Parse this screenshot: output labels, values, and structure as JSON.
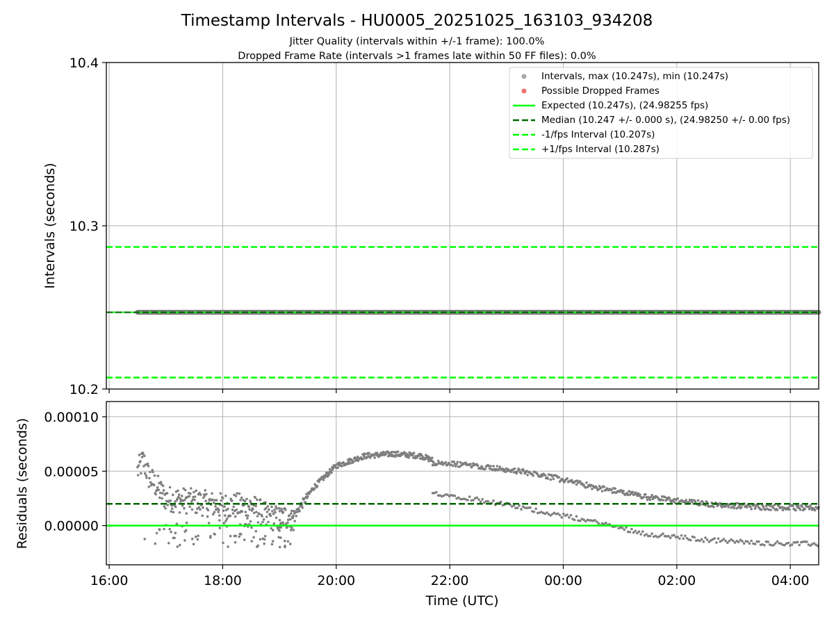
{
  "figure": {
    "title": "Timestamp Intervals - HU0005_20251025_163103_934208",
    "subtitle_1": "Jitter Quality (intervals within +/-1 frame): 100.0%",
    "subtitle_2": "Dropped Frame Rate (intervals >1 frames late within 50 FF files): 0.0%"
  },
  "colors": {
    "points": "#7f7f7f",
    "dropped": "#ff0000",
    "expected": "#00ff00",
    "median": "#006400",
    "jitter": "#00ff00",
    "grid": "#b0b0b0"
  },
  "chart_data": [
    {
      "type": "scatter",
      "title": "Timestamp Intervals - HU0005_20251025_163103_934208",
      "xlabel": "",
      "ylabel": "Intervals (seconds)",
      "ylim": [
        10.2,
        10.4
      ],
      "yticks": [
        10.2,
        10.3,
        10.4
      ],
      "ytick_labels": [
        "10.2",
        "10.3",
        "10.4"
      ],
      "xlim_hours": [
        15.95,
        28.5
      ],
      "xticks_hours": [
        16,
        18,
        20,
        22,
        24,
        26,
        28
      ],
      "grid": true,
      "legend_position": "top-right",
      "legend": [
        {
          "kind": "dot",
          "color": "#aaaaaa",
          "label": "Intervals, max (10.247s), min (10.247s)"
        },
        {
          "kind": "dot",
          "color": "#f07070",
          "label": "Possible Dropped Frames"
        },
        {
          "kind": "solid",
          "color": "#00ff00",
          "label": "Expected (10.247s), (24.98255 fps)"
        },
        {
          "kind": "dashed",
          "color": "#006400",
          "label": "Median (10.247 +/- 0.000 s), (24.98250 +/- 0.00 fps)"
        },
        {
          "kind": "dashed",
          "color": "#00ff00",
          "label": "-1/fps Interval (10.207s)"
        },
        {
          "kind": "dashed",
          "color": "#00ff00",
          "label": "+1/fps Interval (10.287s)"
        }
      ],
      "series": [
        {
          "name": "Intervals",
          "x_start_hours": 16.5,
          "x_end_hours": 28.5,
          "value": 10.247
        },
        {
          "name": "Expected",
          "value": 10.247
        },
        {
          "name": "Median",
          "value": 10.247
        },
        {
          "name": "-1/fps Interval",
          "value": 10.207
        },
        {
          "name": "+1/fps Interval",
          "value": 10.287
        }
      ]
    },
    {
      "type": "scatter",
      "xlabel": "Time (UTC)",
      "ylabel": "Residuals (seconds)",
      "ylim": [
        -3.6e-05,
        0.000114
      ],
      "yticks": [
        0.0,
        5e-05,
        0.0001
      ],
      "ytick_labels": [
        "0.00000",
        "0.00005",
        "0.00010"
      ],
      "xlim_hours": [
        15.95,
        28.5
      ],
      "xticks_hours": [
        16,
        18,
        20,
        22,
        24,
        26,
        28
      ],
      "xtick_labels": [
        "16:00",
        "18:00",
        "20:00",
        "22:00",
        "00:00",
        "02:00",
        "04:00"
      ],
      "grid": true,
      "expected_residual": 0.0,
      "median_residual": 2e-05,
      "residual_trend": {
        "hours": [
          16.5,
          16.6,
          16.7,
          17.0,
          17.5,
          18.0,
          18.5,
          18.8,
          19.0,
          19.3,
          19.6,
          20.0,
          20.5,
          21.0,
          21.5,
          21.7
        ],
        "values": [
          5e-05,
          6e-05,
          4.5e-05,
          2.5e-05,
          2.2e-05,
          1.8e-05,
          1.8e-05,
          8e-06,
          6e-06,
          1.2e-05,
          3.5e-05,
          5.5e-05,
          6.4e-05,
          6.6e-05,
          6.4e-05,
          6e-05
        ]
      },
      "upper_branch": {
        "hours": [
          21.7,
          22.5,
          23.5,
          24.5,
          25.5,
          26.5,
          27.5,
          28.5
        ],
        "values": [
          5.8e-05,
          5.5e-05,
          4.8e-05,
          3.6e-05,
          2.6e-05,
          2e-05,
          1.7e-05,
          1.6e-05
        ]
      },
      "lower_branch": {
        "hours": [
          21.7,
          22.5,
          23.5,
          24.5,
          25.5,
          26.5,
          27.5,
          28.5
        ],
        "values": [
          3e-05,
          2.4e-05,
          1.4e-05,
          4e-06,
          -8e-06,
          -1.3e-05,
          -1.6e-05,
          -1.7e-05
        ]
      }
    }
  ]
}
